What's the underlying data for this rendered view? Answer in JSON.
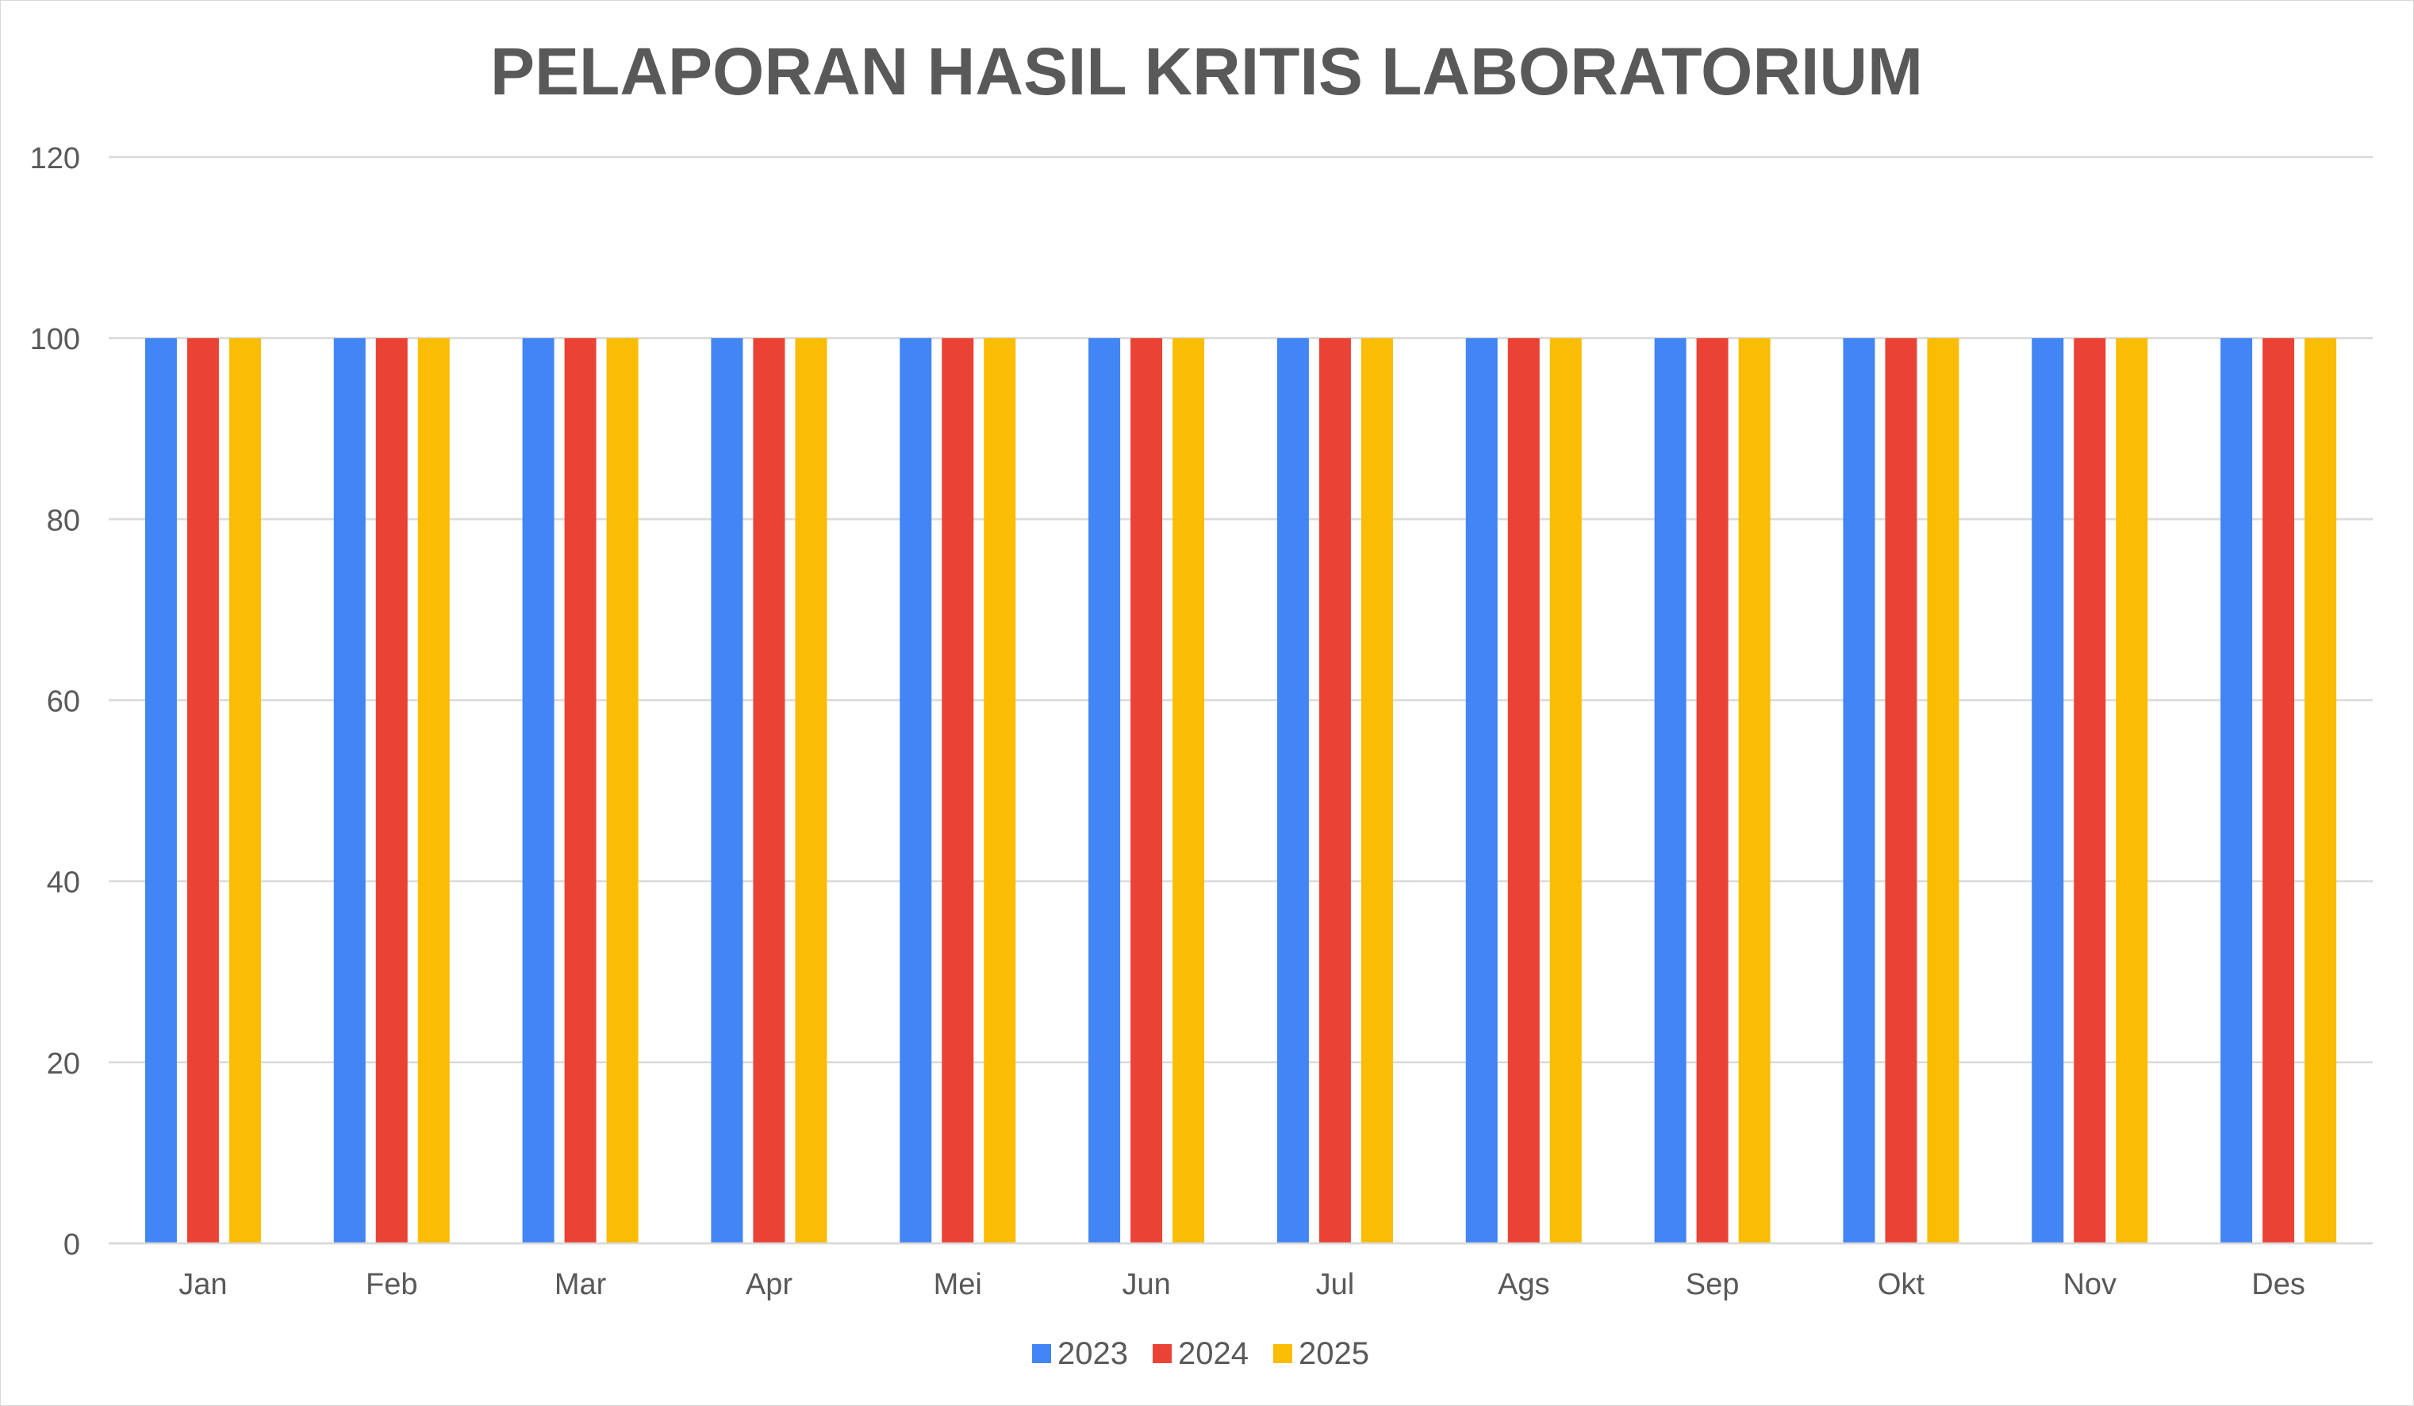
{
  "chart_data": {
    "type": "bar",
    "title": "PELAPORAN HASIL KRITIS LABORATORIUM",
    "xlabel": "",
    "ylabel": "",
    "ylim": [
      0,
      120
    ],
    "yticks": [
      0,
      20,
      40,
      60,
      80,
      100,
      120
    ],
    "grid": true,
    "legend_position": "bottom",
    "categories": [
      "Jan",
      "Feb",
      "Mar",
      "Apr",
      "Mei",
      "Jun",
      "Jul",
      "Ags",
      "Sep",
      "Okt",
      "Nov",
      "Des"
    ],
    "series": [
      {
        "name": "2023",
        "color": "#4285F4",
        "values": [
          100,
          100,
          100,
          100,
          100,
          100,
          100,
          100,
          100,
          100,
          100,
          100
        ]
      },
      {
        "name": "2024",
        "color": "#EA4335",
        "values": [
          100,
          100,
          100,
          100,
          100,
          100,
          100,
          100,
          100,
          100,
          100,
          100
        ]
      },
      {
        "name": "2025",
        "color": "#FBBC04",
        "values": [
          100,
          100,
          100,
          100,
          100,
          100,
          100,
          100,
          100,
          100,
          100,
          100
        ]
      }
    ]
  }
}
